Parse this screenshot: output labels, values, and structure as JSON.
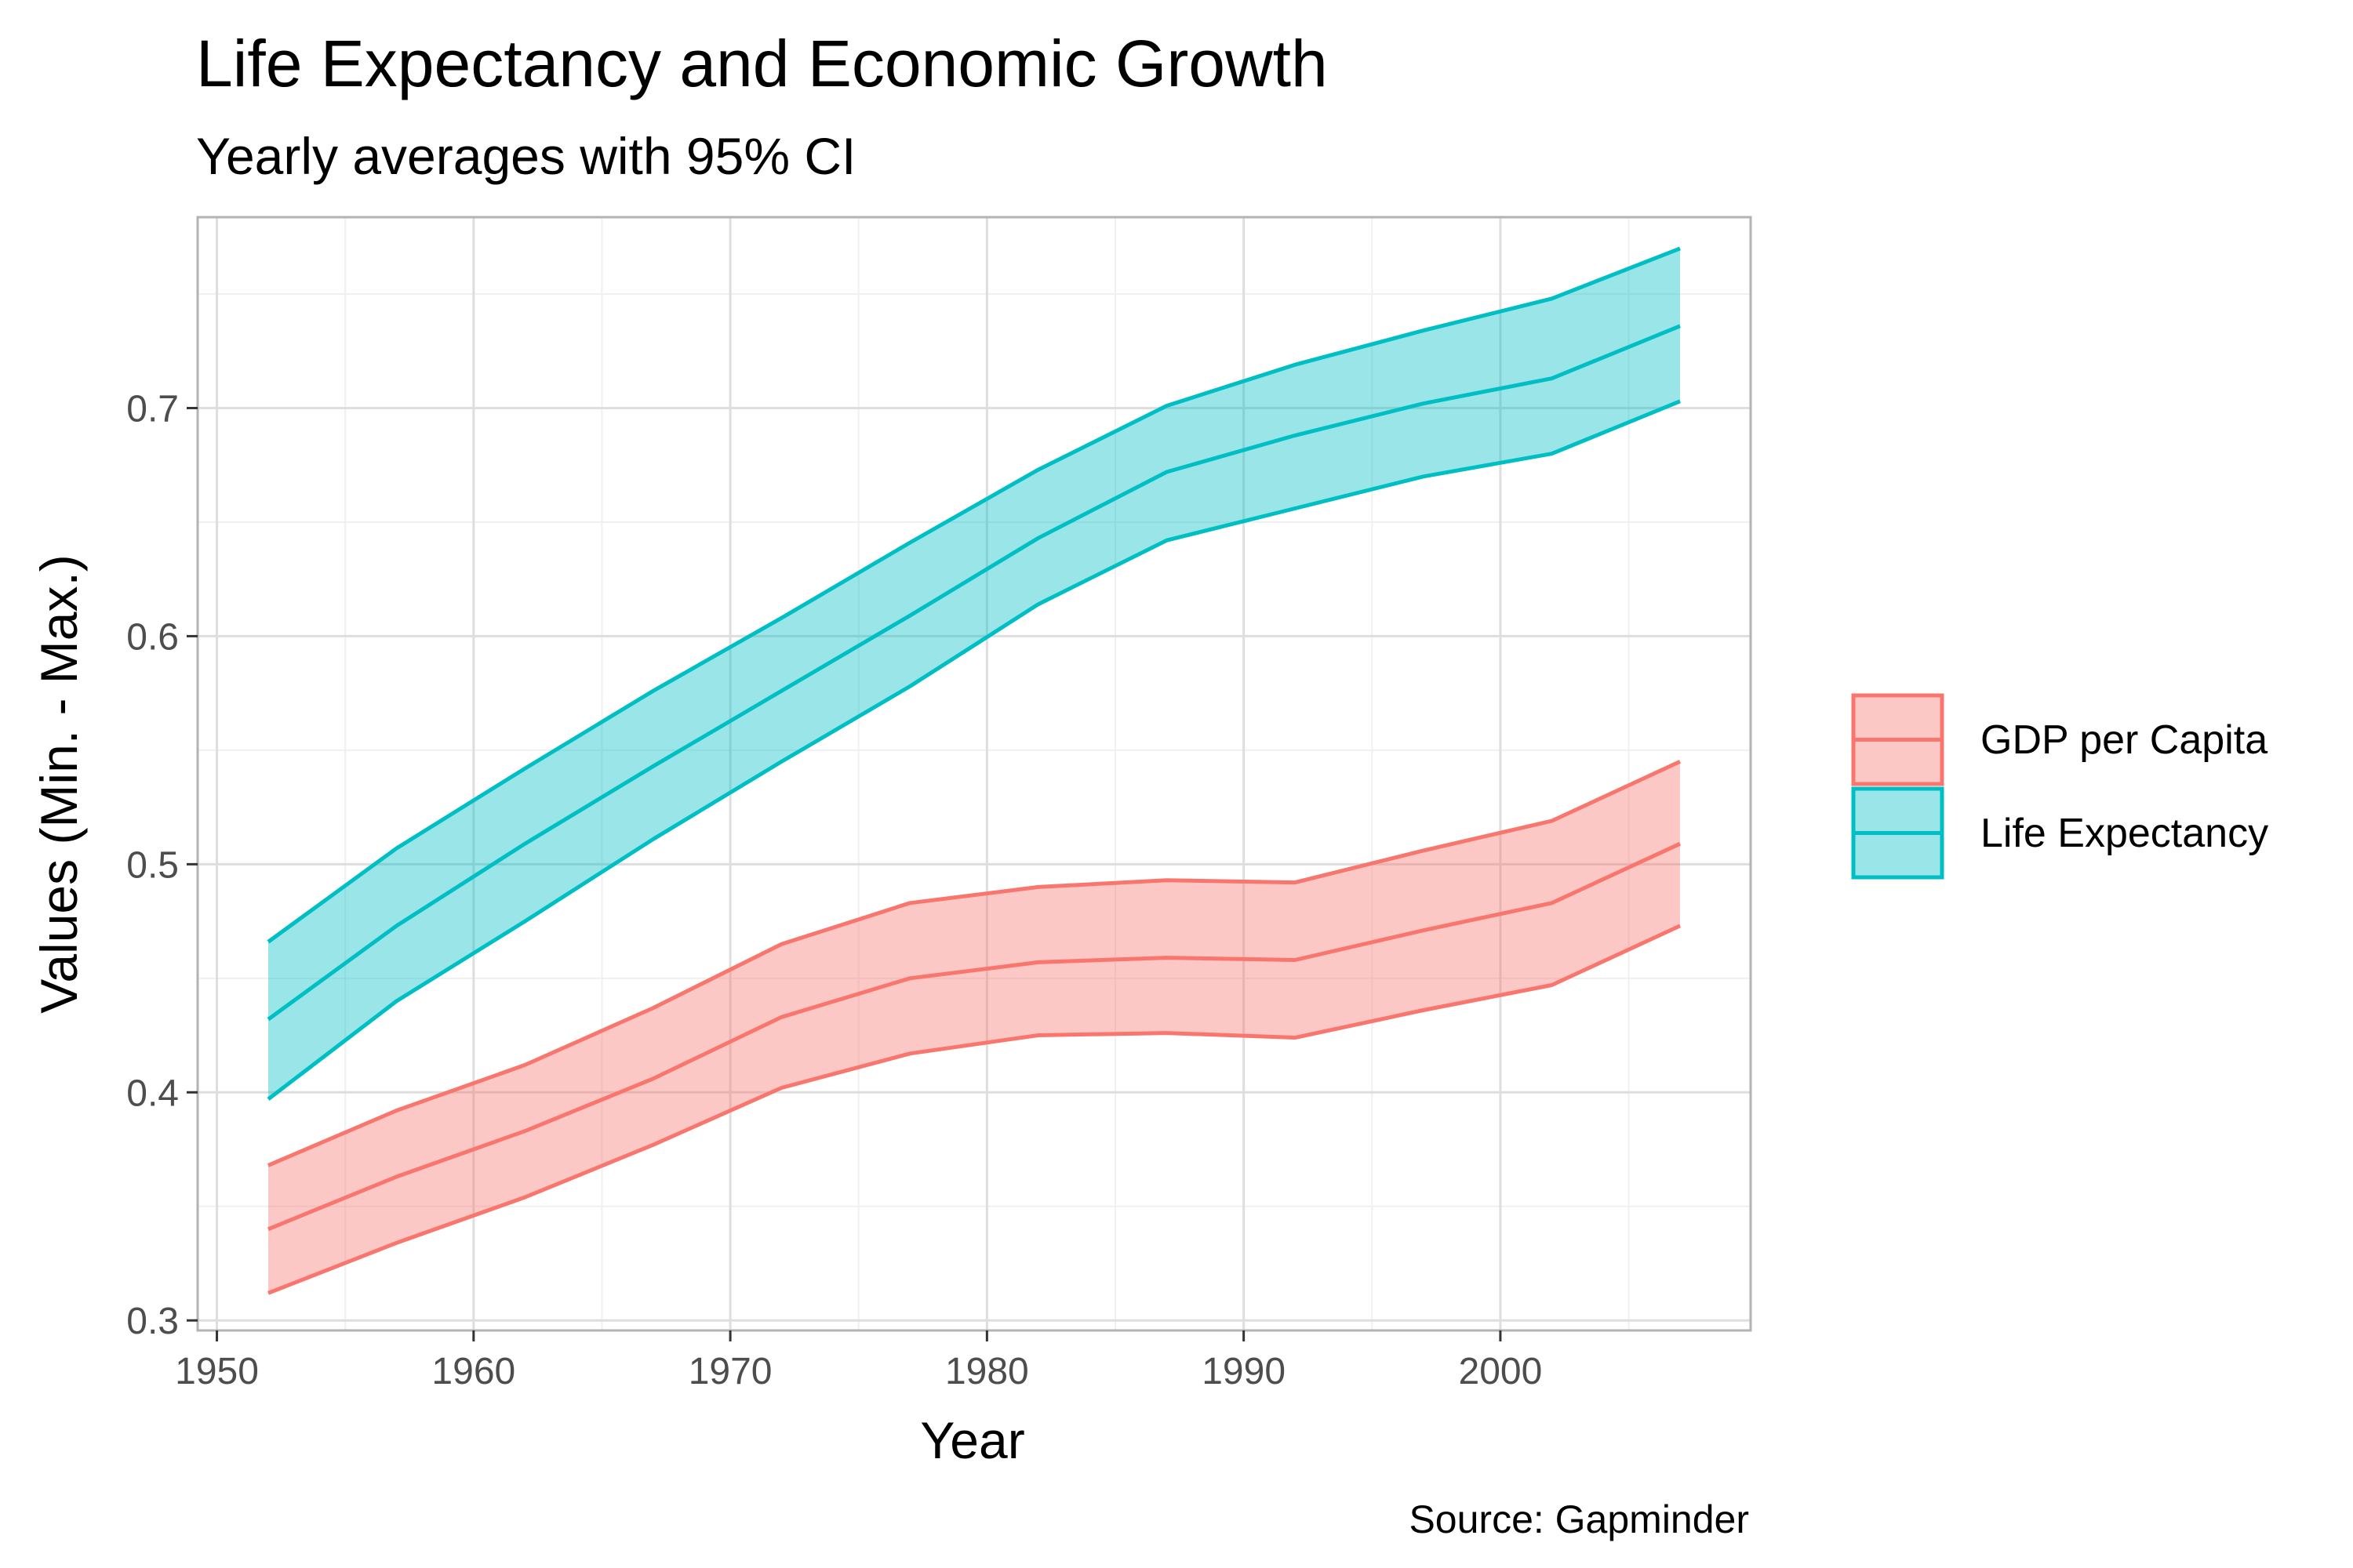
{
  "chart_data": {
    "type": "line",
    "title": "Life Expectancy and Economic Growth",
    "subtitle": "Yearly averages with 95% CI",
    "xlabel": "Year",
    "ylabel": "Values (Min. - Max.)",
    "caption": "Source: Gapminder",
    "xlim": [
      1949.25,
      2009.75
    ],
    "ylim": [
      0.2956,
      0.7837
    ],
    "x_ticks": [
      1950,
      1960,
      1970,
      1980,
      1990,
      2000
    ],
    "y_ticks": [
      0.3,
      0.4,
      0.5,
      0.6,
      0.7
    ],
    "x_tick_labels": [
      "1950",
      "1960",
      "1970",
      "1980",
      "1990",
      "2000"
    ],
    "y_tick_labels": [
      "0.3",
      "0.4",
      "0.5",
      "0.6",
      "0.7"
    ],
    "grid": true,
    "legend_position": "right",
    "x": [
      1952,
      1957,
      1962,
      1967,
      1972,
      1977,
      1982,
      1987,
      1992,
      1997,
      2002,
      2007
    ],
    "series": [
      {
        "name": "GDP per Capita",
        "color": "#F8766D",
        "fill": "#F8766D",
        "mean": [
          0.34,
          0.363,
          0.383,
          0.406,
          0.433,
          0.45,
          0.457,
          0.459,
          0.458,
          0.471,
          0.483,
          0.509
        ],
        "lower": [
          0.312,
          0.334,
          0.354,
          0.377,
          0.402,
          0.417,
          0.425,
          0.426,
          0.424,
          0.436,
          0.447,
          0.473
        ],
        "upper": [
          0.368,
          0.392,
          0.412,
          0.437,
          0.465,
          0.483,
          0.49,
          0.493,
          0.492,
          0.506,
          0.519,
          0.545
        ]
      },
      {
        "name": "Life Expectancy",
        "color": "#00BFC4",
        "fill": "#00BFC4",
        "mean": [
          0.432,
          0.473,
          0.509,
          0.543,
          0.576,
          0.609,
          0.643,
          0.672,
          0.688,
          0.702,
          0.713,
          0.736
        ],
        "lower": [
          0.397,
          0.44,
          0.475,
          0.511,
          0.545,
          0.578,
          0.614,
          0.642,
          0.656,
          0.67,
          0.68,
          0.703
        ],
        "upper": [
          0.466,
          0.507,
          0.542,
          0.576,
          0.608,
          0.641,
          0.673,
          0.701,
          0.719,
          0.734,
          0.748,
          0.77
        ]
      }
    ]
  }
}
